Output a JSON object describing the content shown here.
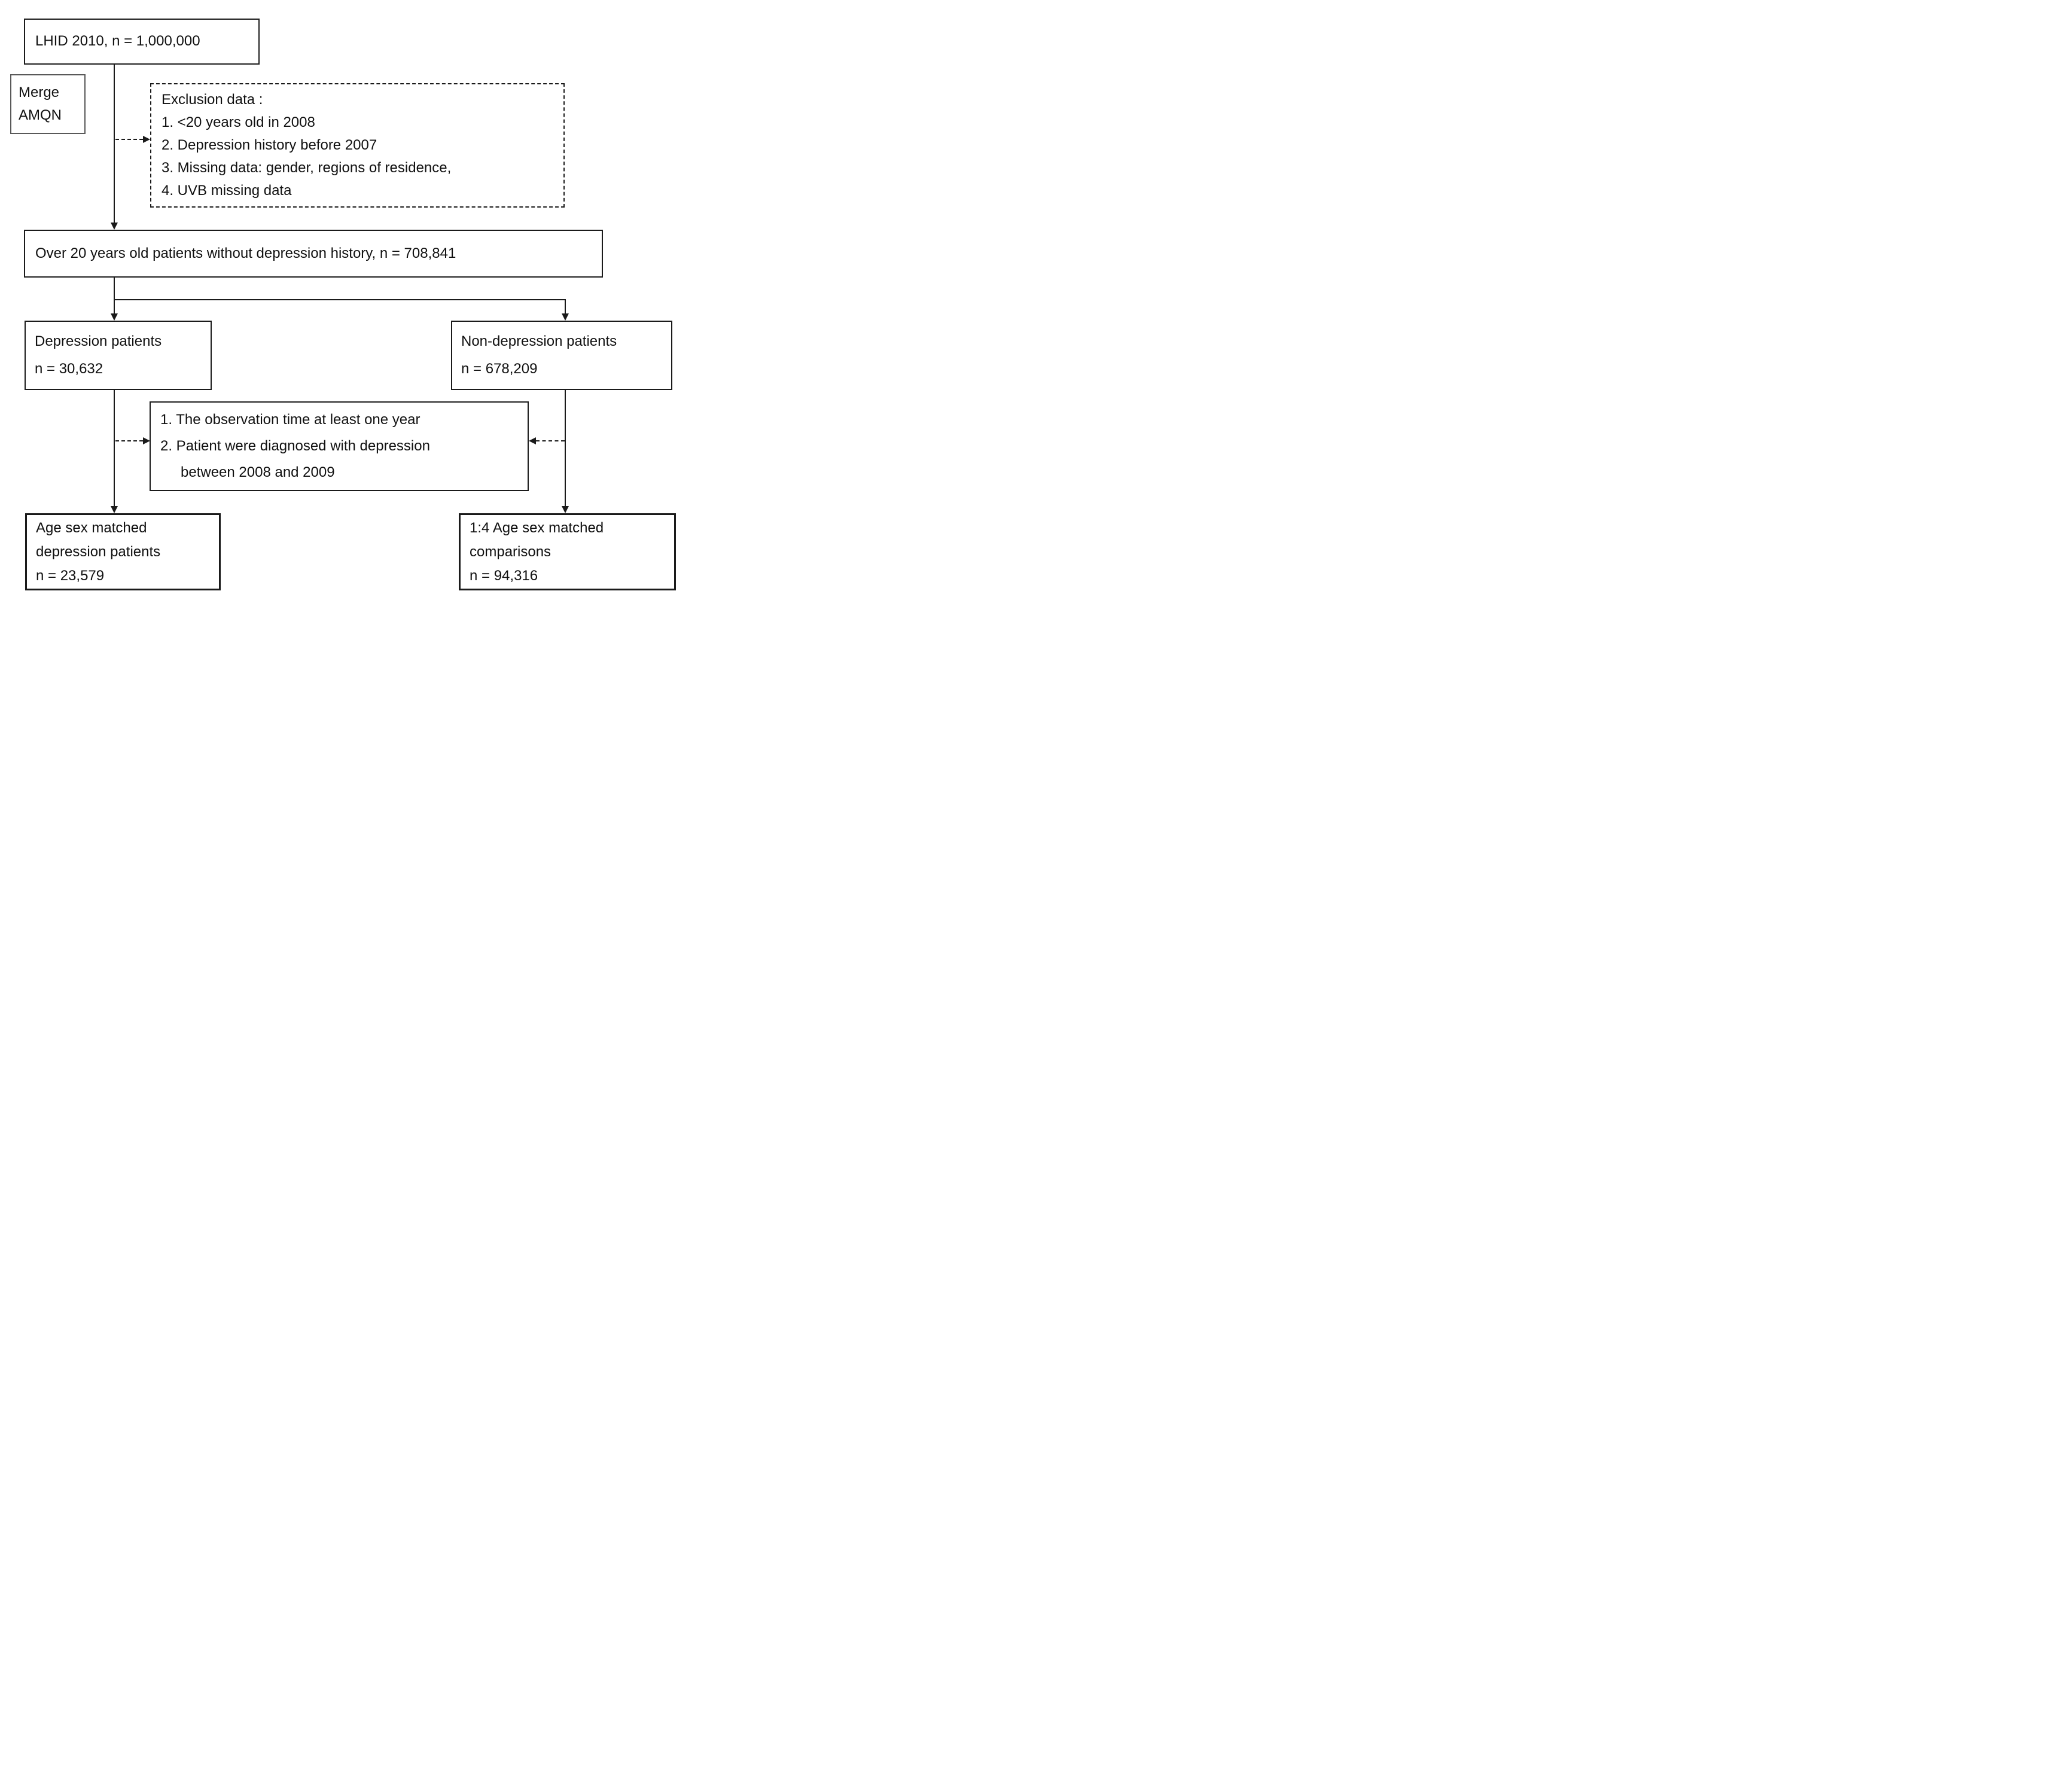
{
  "diagram": {
    "title": "Patient selection flowchart",
    "colors": {
      "background": "#ffffff",
      "box_border": "#1a1a1a",
      "merge_box_border": "#595959",
      "text": "#111111"
    },
    "boxes": {
      "lhid": {
        "text": "LHID 2010, n = 1,000,000"
      },
      "merge": {
        "lines": [
          "Merge",
          "AMQN"
        ]
      },
      "exclusion": {
        "lines": [
          "Exclusion data :",
          "1. <20 years old in 2008",
          "2. Depression history before 2007",
          "3. Missing data: gender, regions of residence,",
          "4. UVB missing data"
        ]
      },
      "over20": {
        "text": "Over 20 years old patients without depression history, n = 708,841"
      },
      "depression": {
        "lines": [
          "Depression patients",
          "n = 30,632"
        ]
      },
      "non_depression": {
        "lines": [
          "Non-depression patients",
          "n = 678,209"
        ]
      },
      "criteria": {
        "lines": [
          "1. The observation time at least one year",
          "2. Patient were diagnosed with depression",
          "between 2008 and 2009"
        ]
      },
      "matched_depression": {
        "lines": [
          "Age sex matched",
          "depression patients",
          "n = 23,579"
        ]
      },
      "matched_comparisons": {
        "lines": [
          "1:4 Age sex matched",
          "comparisons",
          "n = 94,316"
        ]
      }
    }
  }
}
